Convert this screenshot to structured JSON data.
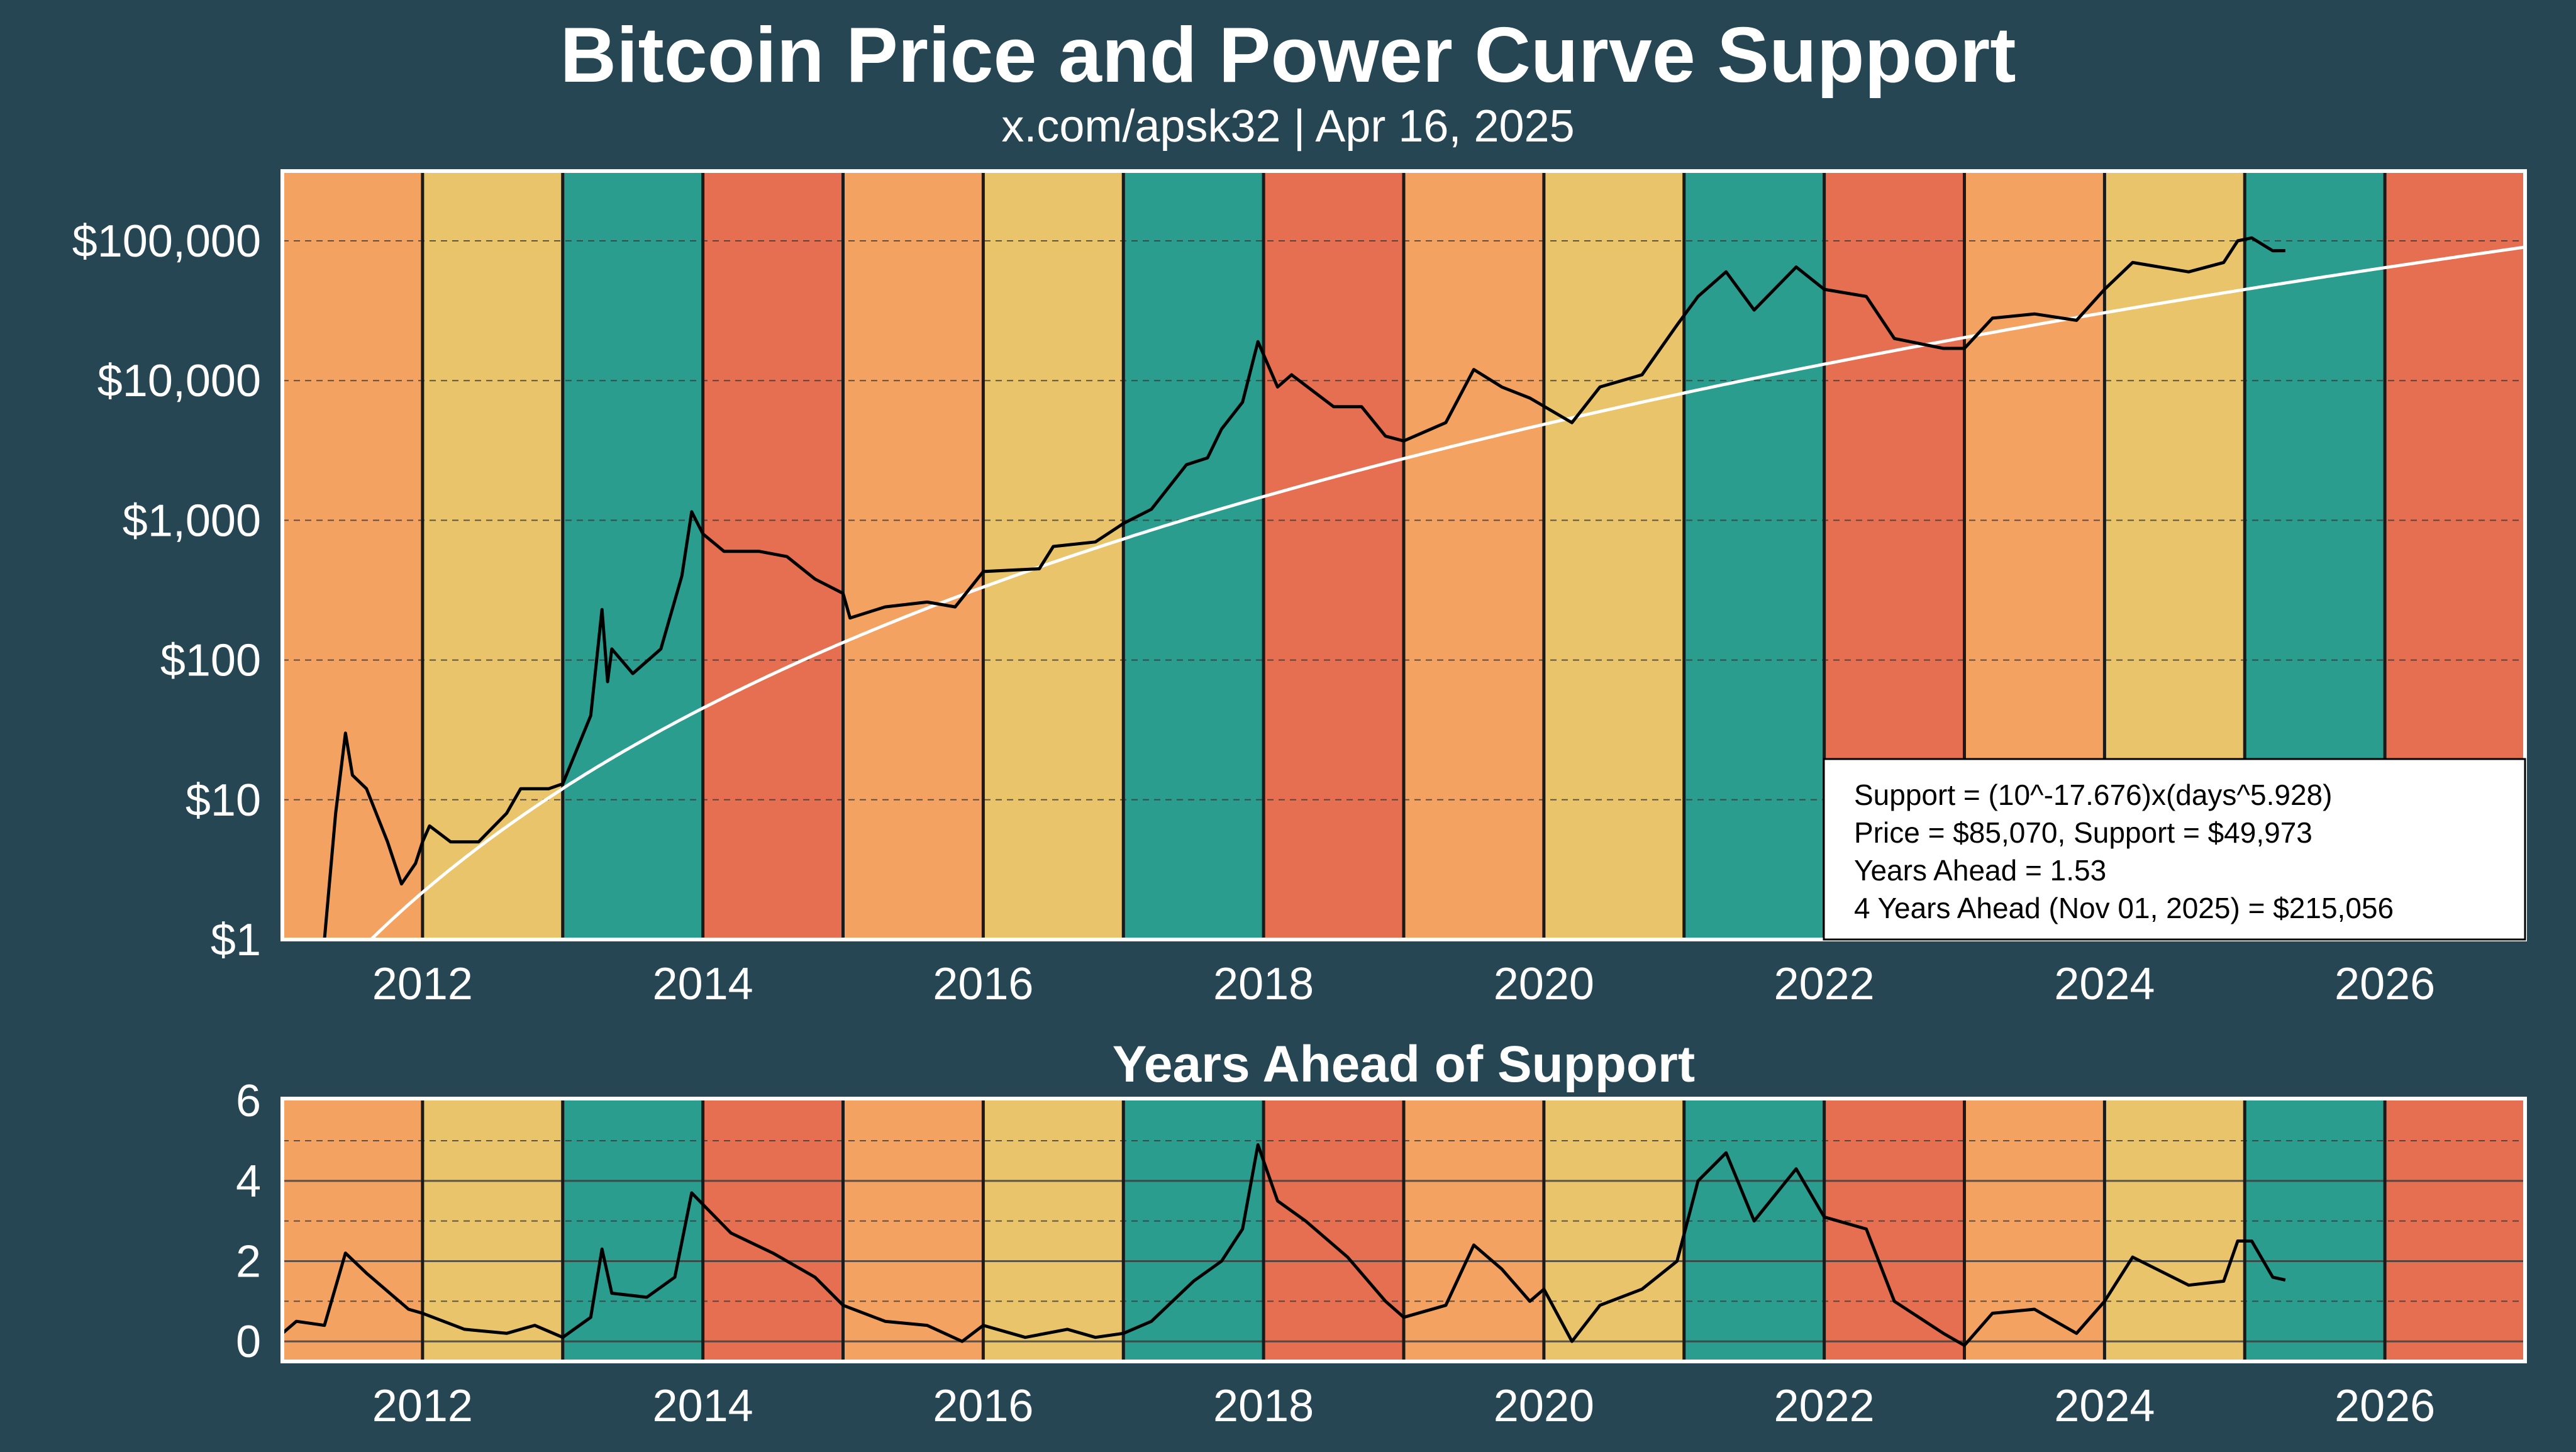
{
  "title": "Bitcoin Price and Power Curve Support",
  "subtitle": "x.com/apsk32 | Apr 16, 2025",
  "colors": {
    "background": "#264653",
    "band_cycle": [
      "#f4a261",
      "#e9c46a",
      "#2a9d8f",
      "#e76f51"
    ],
    "price_line": "#000000",
    "support_line": "#ffffff"
  },
  "chart_data": [
    {
      "type": "line",
      "title": "",
      "y_scale": "log",
      "xlim": [
        2011,
        2027
      ],
      "ylim": [
        1,
        316000
      ],
      "x_ticks": [
        "2012",
        "2014",
        "2016",
        "2018",
        "2020",
        "2022",
        "2024",
        "2026"
      ],
      "y_ticks": [
        "$1",
        "$10",
        "$100",
        "$1,000",
        "$10,000",
        "$100,000"
      ],
      "grid": "horizontal dashed",
      "background_bands": "one per calendar year, cycling orange, yellow, teal, red starting 2011",
      "support_formula": {
        "coefficient_exp10": -17.676,
        "exponent": 5.928
      },
      "annotation": {
        "position": "bottom-right",
        "lines": [
          "Support = (10^-17.676)x(days^5.928)",
          "Price = $85,070, Support = $49,973",
          "Years Ahead = 1.53",
          "4 Years Ahead (Nov 01, 2025) = $215,056"
        ]
      },
      "series": [
        {
          "x": [
            2011.05,
            2011.15,
            2011.3,
            2011.38,
            2011.45,
            2011.5,
            2011.6,
            2011.75,
            2011.85,
            2011.95,
            2012.0,
            2012.05,
            2012.2,
            2012.4,
            2012.6,
            2012.7,
            2012.9,
            2013.0,
            2013.2,
            2013.28,
            2013.32,
            2013.35,
            2013.5,
            2013.7,
            2013.85,
            2013.92,
            2014.0,
            2014.15,
            2014.4,
            2014.6,
            2014.8,
            2015.0,
            2015.05,
            2015.3,
            2015.6,
            2015.8,
            2016.0,
            2016.4,
            2016.5,
            2016.8,
            2017.0,
            2017.2,
            2017.45,
            2017.6,
            2017.7,
            2017.85,
            2017.96,
            2018.1,
            2018.2,
            2018.5,
            2018.7,
            2018.87,
            2019.0,
            2019.3,
            2019.5,
            2019.7,
            2019.9,
            2020.2,
            2020.4,
            2020.7,
            2020.95,
            2021.1,
            2021.3,
            2021.5,
            2021.8,
            2022.0,
            2022.3,
            2022.5,
            2022.85,
            2023.0,
            2023.2,
            2023.5,
            2023.8,
            2024.0,
            2024.2,
            2024.6,
            2024.85,
            2024.95,
            2025.05,
            2025.2,
            2025.29
          ],
          "y": [
            0.9,
            0.7,
            1.0,
            8,
            30,
            15,
            12,
            5,
            2.5,
            3.5,
            5,
            6.5,
            5,
            5,
            8,
            12,
            12,
            13,
            40,
            230,
            70,
            120,
            80,
            120,
            400,
            1150,
            800,
            600,
            600,
            550,
            380,
            300,
            200,
            240,
            260,
            240,
            430,
            450,
            650,
            700,
            950,
            1200,
            2500,
            2800,
            4500,
            7000,
            19000,
            9000,
            11000,
            6500,
            6500,
            4000,
            3700,
            5000,
            12000,
            9000,
            7500,
            5000,
            9000,
            11000,
            25000,
            40000,
            60000,
            32000,
            65000,
            45000,
            40000,
            20000,
            17000,
            17000,
            28000,
            30000,
            27000,
            45000,
            70000,
            60000,
            70000,
            100000,
            105000,
            85000,
            85070
          ]
        }
      ]
    },
    {
      "type": "line",
      "title": "Years Ahead of Support",
      "xlim": [
        2011,
        2027
      ],
      "ylim": [
        -0.5,
        6.05
      ],
      "x_ticks": [
        "2012",
        "2014",
        "2016",
        "2018",
        "2020",
        "2022",
        "2024",
        "2026"
      ],
      "y_ticks": [
        "0",
        "2",
        "4",
        "6"
      ],
      "grid": "horizontal, solid at 0/2/4/6, dashed at 1/3/5",
      "series": [
        {
          "x": [
            2011.0,
            2011.1,
            2011.3,
            2011.45,
            2011.6,
            2011.9,
            2012.0,
            2012.3,
            2012.6,
            2012.8,
            2013.0,
            2013.2,
            2013.28,
            2013.35,
            2013.6,
            2013.8,
            2013.92,
            2014.2,
            2014.5,
            2014.8,
            2015.0,
            2015.3,
            2015.6,
            2015.85,
            2016.0,
            2016.3,
            2016.6,
            2016.8,
            2017.0,
            2017.2,
            2017.5,
            2017.7,
            2017.85,
            2017.96,
            2018.1,
            2018.3,
            2018.6,
            2018.87,
            2019.0,
            2019.3,
            2019.5,
            2019.7,
            2019.9,
            2020.0,
            2020.2,
            2020.4,
            2020.7,
            2020.95,
            2021.1,
            2021.3,
            2021.5,
            2021.8,
            2022.0,
            2022.3,
            2022.5,
            2022.85,
            2023.0,
            2023.2,
            2023.5,
            2023.8,
            2024.0,
            2024.2,
            2024.6,
            2024.85,
            2024.95,
            2025.05,
            2025.2,
            2025.29
          ],
          "y": [
            0.2,
            0.5,
            0.4,
            2.2,
            1.7,
            0.8,
            0.7,
            0.3,
            0.2,
            0.4,
            0.1,
            0.6,
            2.3,
            1.2,
            1.1,
            1.6,
            3.7,
            2.7,
            2.2,
            1.6,
            0.9,
            0.5,
            0.4,
            0.0,
            0.4,
            0.1,
            0.3,
            0.1,
            0.2,
            0.5,
            1.5,
            2.0,
            2.8,
            4.9,
            3.5,
            3.0,
            2.1,
            1.0,
            0.6,
            0.9,
            2.4,
            1.8,
            1.0,
            1.3,
            0.0,
            0.9,
            1.3,
            2.0,
            4.0,
            4.7,
            3.0,
            4.3,
            3.1,
            2.8,
            1.0,
            0.2,
            -0.1,
            0.7,
            0.8,
            0.2,
            1.0,
            2.1,
            1.4,
            1.5,
            2.5,
            2.5,
            1.6,
            1.53
          ]
        }
      ]
    }
  ]
}
